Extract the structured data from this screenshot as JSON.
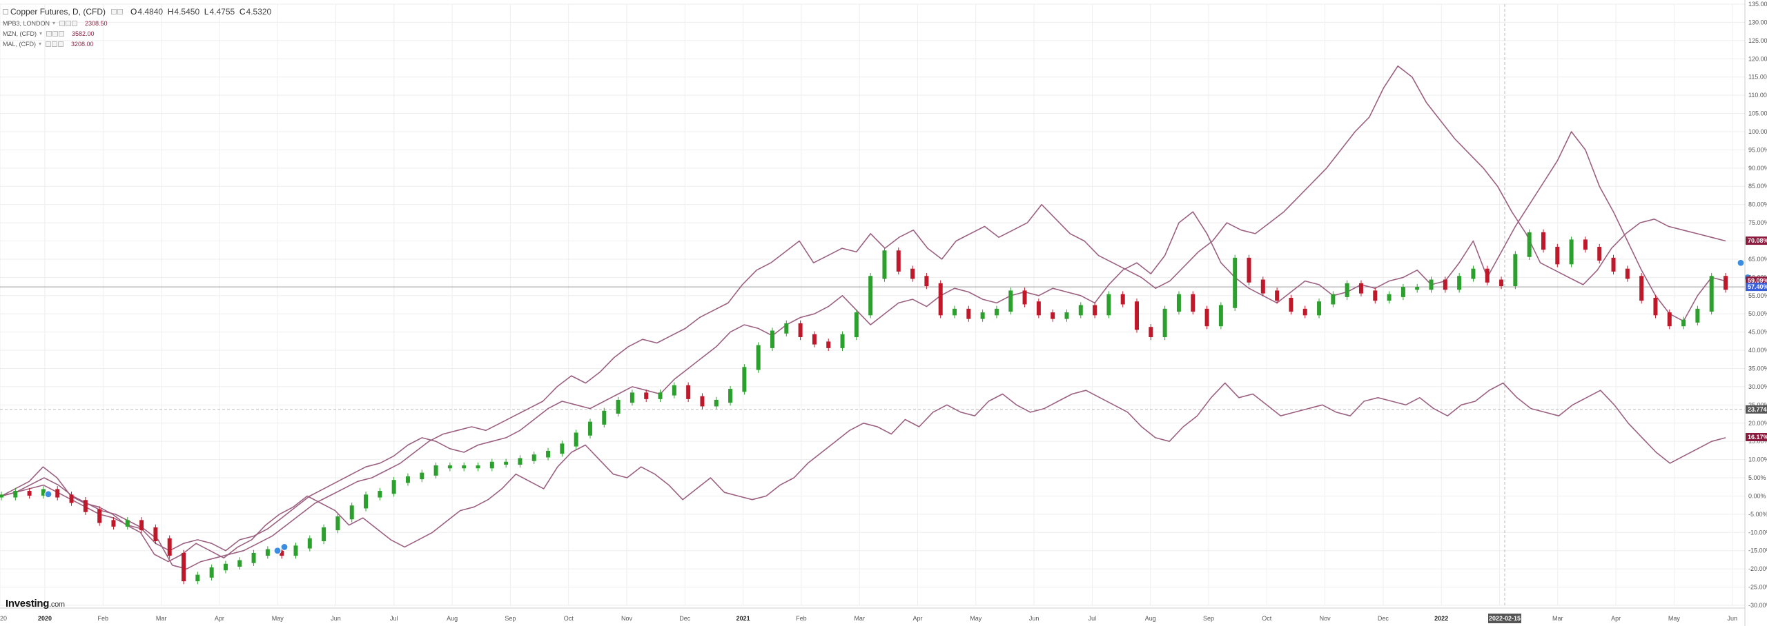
{
  "legend": {
    "main_title": "Copper Futures, D, (CFD)",
    "ohlc": {
      "o_label": "O",
      "o": "4.4840",
      "h_label": "H",
      "h": "4.5450",
      "l_label": "L",
      "l": "4.4755",
      "c_label": "C",
      "c": "4.5320"
    },
    "compare": [
      {
        "symbol": "MPB3, LONDON",
        "value": "2308.50"
      },
      {
        "symbol": "MZN, (CFD)",
        "value": "3582.00"
      },
      {
        "symbol": "MAL, (CFD)",
        "value": "3208.00"
      }
    ]
  },
  "logo": {
    "brand": "Investing",
    "suffix": ".com"
  },
  "colors": {
    "up": "#2ca02c",
    "down": "#c0182b",
    "compare_line": "#9b6080",
    "badge_compare": "#8a1a3e",
    "badge_main": "#3b5fd9",
    "grid": "#eeeeee"
  },
  "chart_data": {
    "type": "line",
    "y_axis": {
      "unit": "percent",
      "min": -30,
      "max": 135,
      "step": 5
    },
    "y_tick_labels": [
      "135.00%",
      "130.00%",
      "125.00%",
      "120.00%",
      "115.00%",
      "110.00%",
      "105.00%",
      "100.00%",
      "95.00%",
      "90.00%",
      "85.00%",
      "80.00%",
      "75.00%",
      "70.00%",
      "65.00%",
      "60.00%",
      "55.00%",
      "50.00%",
      "45.00%",
      "40.00%",
      "35.00%",
      "30.00%",
      "25.00%",
      "20.00%",
      "15.00%",
      "10.00%",
      "5.00%",
      "0.00%",
      "-5.00%",
      "-10.00%",
      "-15.00%",
      "-20.00%",
      "-25.00%",
      "-30.00%"
    ],
    "x_tick_labels": [
      {
        "label": "20",
        "year": false
      },
      {
        "label": "2020",
        "year": true
      },
      {
        "label": "Feb",
        "year": false
      },
      {
        "label": "Mar",
        "year": false
      },
      {
        "label": "Apr",
        "year": false
      },
      {
        "label": "May",
        "year": false
      },
      {
        "label": "Jun",
        "year": false
      },
      {
        "label": "Jul",
        "year": false
      },
      {
        "label": "Aug",
        "year": false
      },
      {
        "label": "Sep",
        "year": false
      },
      {
        "label": "Oct",
        "year": false
      },
      {
        "label": "Nov",
        "year": false
      },
      {
        "label": "Dec",
        "year": false
      },
      {
        "label": "2021",
        "year": true
      },
      {
        "label": "Feb",
        "year": false
      },
      {
        "label": "Mar",
        "year": false
      },
      {
        "label": "Apr",
        "year": false
      },
      {
        "label": "May",
        "year": false
      },
      {
        "label": "Jun",
        "year": false
      },
      {
        "label": "Jul",
        "year": false
      },
      {
        "label": "Aug",
        "year": false
      },
      {
        "label": "Sep",
        "year": false
      },
      {
        "label": "Oct",
        "year": false
      },
      {
        "label": "Nov",
        "year": false
      },
      {
        "label": "Dec",
        "year": false
      },
      {
        "label": "2022",
        "year": true
      },
      {
        "label": "Feb",
        "year": false
      },
      {
        "label": "Mar",
        "year": false
      },
      {
        "label": "Apr",
        "year": false
      },
      {
        "label": "May",
        "year": false
      },
      {
        "label": "Jun",
        "year": false
      }
    ],
    "crosshair": {
      "x_label": "2022-02-15",
      "y_label": "23.7745",
      "y_value": 23.77
    },
    "price_line_value": 57.4,
    "badges": [
      {
        "label": "70.08%",
        "value": 70.08,
        "kind": "compare"
      },
      {
        "label": "59.09%",
        "value": 59.09,
        "kind": "compare"
      },
      {
        "label": "57.40%",
        "value": 57.4,
        "kind": "main"
      },
      {
        "label": "16.17%",
        "value": 16.17,
        "kind": "compare"
      }
    ],
    "series": [
      {
        "name": "Copper Futures, D, (CFD)",
        "style": "candles",
        "values": [
          0,
          1,
          0.5,
          1.5,
          0,
          -1.5,
          -4,
          -7,
          -8,
          -7,
          -9,
          -12,
          -16,
          -23,
          -22,
          -20,
          -19,
          -18,
          -16,
          -15,
          -16,
          -14,
          -12,
          -9,
          -6,
          -3,
          0,
          1,
          4,
          5,
          6,
          8,
          8,
          8,
          8,
          9,
          9,
          10,
          11,
          12,
          14,
          17,
          20,
          23,
          26,
          28,
          27,
          28,
          30,
          27,
          25,
          26,
          29,
          35,
          41,
          45,
          47,
          44,
          42,
          41,
          44,
          50,
          60,
          67,
          62,
          60,
          58,
          50,
          51,
          49,
          50,
          51,
          56,
          53,
          50,
          49,
          50,
          52,
          50,
          55,
          53,
          46,
          44,
          51,
          55,
          51,
          47,
          52,
          65,
          59,
          56,
          54,
          51,
          50,
          53,
          55,
          58,
          56,
          54,
          55,
          57,
          57,
          59,
          57,
          60,
          62,
          59,
          58,
          66,
          72,
          68,
          64,
          70,
          68,
          65,
          62,
          60,
          54,
          50,
          47,
          48,
          51,
          60,
          57
        ]
      },
      {
        "name": "MPB3, LONDON",
        "style": "line",
        "values": [
          0,
          2,
          4,
          8,
          5,
          0,
          -2,
          -3,
          -5,
          -8,
          -10,
          -16,
          -18,
          -16,
          -13,
          -15,
          -17,
          -14,
          -12,
          -8,
          -5,
          -3,
          0,
          -2,
          -4,
          -8,
          -6,
          -9,
          -12,
          -14,
          -12,
          -10,
          -7,
          -4,
          -3,
          -1,
          2,
          6,
          4,
          2,
          8,
          12,
          14,
          10,
          6,
          5,
          8,
          6,
          3,
          -1,
          2,
          5,
          1,
          0,
          -1,
          0,
          3,
          5,
          9,
          12,
          15,
          18,
          20,
          19,
          17,
          21,
          19,
          23,
          25,
          23,
          22,
          26,
          28,
          25,
          23,
          24,
          26,
          28,
          29,
          27,
          25,
          23,
          19,
          16,
          15,
          19,
          22,
          27,
          31,
          27,
          28,
          25,
          22,
          23,
          24,
          25,
          23,
          22,
          26,
          27,
          26,
          25,
          27,
          24,
          22,
          25,
          26,
          29,
          31,
          27,
          24,
          23,
          22,
          25,
          27,
          29,
          25,
          20,
          16,
          12,
          9,
          11,
          13,
          15,
          16
        ]
      },
      {
        "name": "MZN, (CFD)",
        "style": "line",
        "values": [
          0,
          1,
          2,
          3,
          1,
          -1,
          -3,
          -5,
          -6,
          -8,
          -9,
          -13,
          -15,
          -13,
          -12,
          -13,
          -15,
          -12,
          -11,
          -9,
          -6,
          -3,
          0,
          2,
          4,
          6,
          8,
          9,
          11,
          14,
          16,
          15,
          13,
          12,
          14,
          15,
          16,
          18,
          21,
          24,
          26,
          25,
          24,
          26,
          28,
          30,
          29,
          28,
          32,
          35,
          38,
          41,
          45,
          47,
          46,
          44,
          47,
          49,
          50,
          52,
          55,
          51,
          47,
          50,
          53,
          54,
          52,
          55,
          57,
          56,
          54,
          53,
          55,
          56,
          55,
          57,
          56,
          55,
          53,
          58,
          62,
          64,
          61,
          66,
          75,
          78,
          72,
          64,
          60,
          57,
          55,
          53,
          56,
          59,
          58,
          55,
          56,
          58,
          57,
          59,
          60,
          62,
          58,
          59,
          64,
          70,
          60,
          67,
          74,
          80,
          86,
          92,
          100,
          95,
          85,
          78,
          70,
          62,
          55,
          50,
          48,
          55,
          60,
          59
        ]
      },
      {
        "name": "MAL, (CFD)",
        "style": "line",
        "values": [
          0,
          1,
          3,
          5,
          3,
          0,
          -2,
          -4,
          -5,
          -7,
          -9,
          -12,
          -19,
          -20,
          -18,
          -17,
          -16,
          -15,
          -13,
          -11,
          -8,
          -5,
          -2,
          0,
          2,
          4,
          5,
          7,
          9,
          12,
          15,
          17,
          18,
          19,
          18,
          20,
          22,
          24,
          26,
          30,
          33,
          31,
          34,
          38,
          41,
          43,
          42,
          44,
          46,
          49,
          51,
          53,
          58,
          62,
          64,
          67,
          70,
          64,
          66,
          68,
          67,
          72,
          68,
          71,
          73,
          68,
          65,
          70,
          72,
          74,
          71,
          73,
          75,
          80,
          76,
          72,
          70,
          66,
          64,
          62,
          60,
          57,
          59,
          63,
          67,
          70,
          75,
          73,
          72,
          75,
          78,
          82,
          86,
          90,
          95,
          100,
          104,
          112,
          118,
          115,
          108,
          103,
          98,
          94,
          90,
          85,
          78,
          72,
          64,
          62,
          60,
          58,
          62,
          68,
          72,
          75,
          76,
          74,
          73,
          72,
          71,
          70
        ]
      }
    ]
  }
}
